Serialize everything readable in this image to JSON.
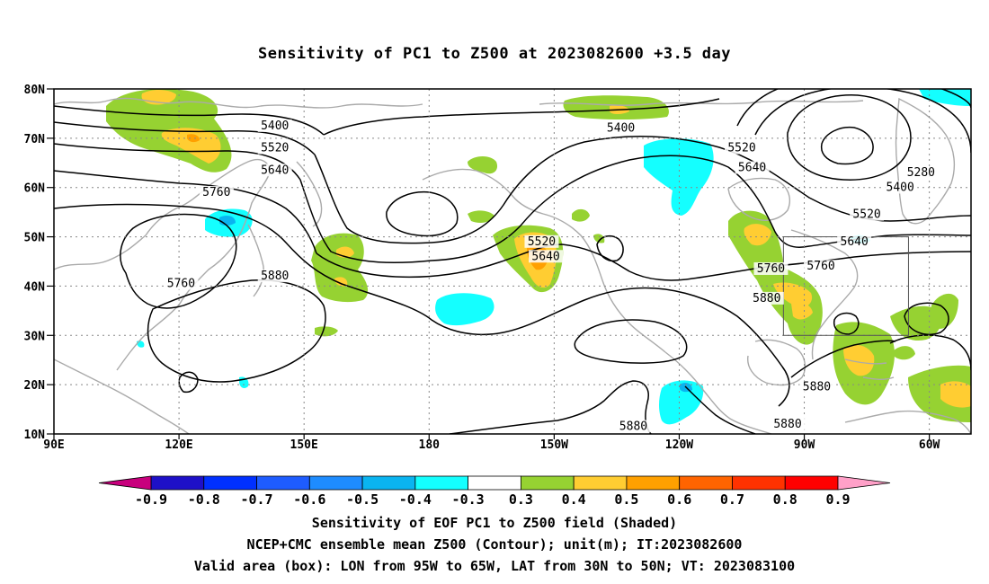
{
  "title": "Sensitivity of PC1 to Z500 at 2023082600 +3.5 day",
  "map": {
    "lat_labels": [
      "80N",
      "70N",
      "60N",
      "50N",
      "40N",
      "30N",
      "20N",
      "10N"
    ],
    "lon_labels": [
      "90E",
      "120E",
      "150E",
      "180",
      "150W",
      "120W",
      "90W",
      "60W"
    ],
    "contour_labels": [
      {
        "text": "5400",
        "lon": 143,
        "lat": 72
      },
      {
        "text": "5520",
        "lon": 143,
        "lat": 67.5
      },
      {
        "text": "5640",
        "lon": 143,
        "lat": 63
      },
      {
        "text": "5760",
        "lon": 129,
        "lat": 58.5
      },
      {
        "text": "5760",
        "lon": 120.5,
        "lat": 40
      },
      {
        "text": "5880",
        "lon": 143,
        "lat": 41.5
      },
      {
        "text": "5400",
        "lon": 226,
        "lat": 71.5
      },
      {
        "text": "5520",
        "lon": 207,
        "lat": 48.5
      },
      {
        "text": "5640",
        "lon": 208,
        "lat": 45.5
      },
      {
        "text": "5520",
        "lon": 255,
        "lat": 67.5
      },
      {
        "text": "5640",
        "lon": 257.5,
        "lat": 63.5
      },
      {
        "text": "5280",
        "lon": 298,
        "lat": 62.5
      },
      {
        "text": "5400",
        "lon": 293,
        "lat": 59.5
      },
      {
        "text": "5520",
        "lon": 285,
        "lat": 54
      },
      {
        "text": "5640",
        "lon": 282,
        "lat": 48.5
      },
      {
        "text": "5760",
        "lon": 274,
        "lat": 43.5
      },
      {
        "text": "5760",
        "lon": 262,
        "lat": 43
      },
      {
        "text": "5880",
        "lon": 261,
        "lat": 37
      },
      {
        "text": "5880",
        "lon": 273,
        "lat": 19
      },
      {
        "text": "5880",
        "lon": 266,
        "lat": 11.5
      },
      {
        "text": "5880",
        "lon": 229,
        "lat": 11
      }
    ],
    "valid_box": {
      "lon_min": 265,
      "lon_max": 295,
      "lat_min": 30,
      "lat_max": 50
    }
  },
  "colorbar": {
    "labels": [
      "-0.9",
      "-0.8",
      "-0.7",
      "-0.6",
      "-0.5",
      "-0.4",
      "-0.3",
      "0.3",
      "0.4",
      "0.5",
      "0.6",
      "0.7",
      "0.8",
      "0.9"
    ],
    "colors": [
      "#1e10c8",
      "#0030ff",
      "#1e5cff",
      "#1e8cff",
      "#0ab4f0",
      "#14ffff",
      "#ffffff",
      "#96d232",
      "#ffcd32",
      "#ffa000",
      "#ff6400",
      "#ff3200",
      "#ff0000"
    ],
    "low_end_color": "#c8007d",
    "high_end_color": "#ffa0c8"
  },
  "footer": {
    "line1": "Sensitivity of EOF PC1 to Z500 field (Shaded)",
    "line2": "NCEP+CMC ensemble mean Z500 (Contour); unit(m); IT:2023082600",
    "line3": "Valid area (box): LON from 95W to 65W, LAT from 30N to 50N; VT: 2023083100"
  }
}
